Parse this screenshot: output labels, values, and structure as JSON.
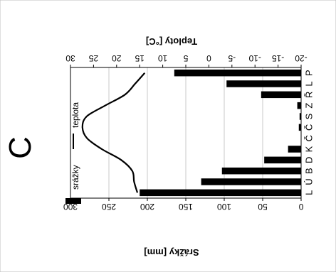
{
  "chart_data": {
    "type": "bar",
    "panel_label": "C",
    "categories": [
      "L",
      "Ú",
      "B",
      "D",
      "K",
      "Č",
      "Č",
      "S",
      "Z",
      "Ř",
      "L",
      "P"
    ],
    "series": [
      {
        "name": "srážky",
        "type": "bar",
        "axis": "bottom",
        "values": [
          210,
          130,
          103,
          48,
          17,
          0,
          3,
          2,
          5,
          52,
          97,
          165
        ]
      },
      {
        "name": "teplota",
        "type": "line",
        "axis": "top",
        "values": [
          15.5,
          16.2,
          16.6,
          19.0,
          23.2,
          26.4,
          27.4,
          26.5,
          22.5,
          18.2,
          16.0,
          13.9
        ]
      }
    ],
    "bottom_axis": {
      "label": "Srážky [mm]",
      "range": [
        0,
        300
      ],
      "ticks": [
        "0",
        "50",
        "100",
        "150",
        "200",
        "250",
        "300"
      ]
    },
    "top_axis": {
      "label": "Teploty [°C]",
      "range": [
        -20,
        30
      ],
      "ticks": [
        "30",
        "25",
        "20",
        "15",
        "10",
        "5",
        "0",
        "-5",
        "-10",
        "-15",
        "-20"
      ]
    },
    "grid": "vertical lines",
    "legend": [
      "srážky",
      "teplota"
    ],
    "orientation": "rotated 180°",
    "colors": {
      "bar": "#000000",
      "line": "#000000",
      "grid": "#c8c8c8"
    }
  }
}
